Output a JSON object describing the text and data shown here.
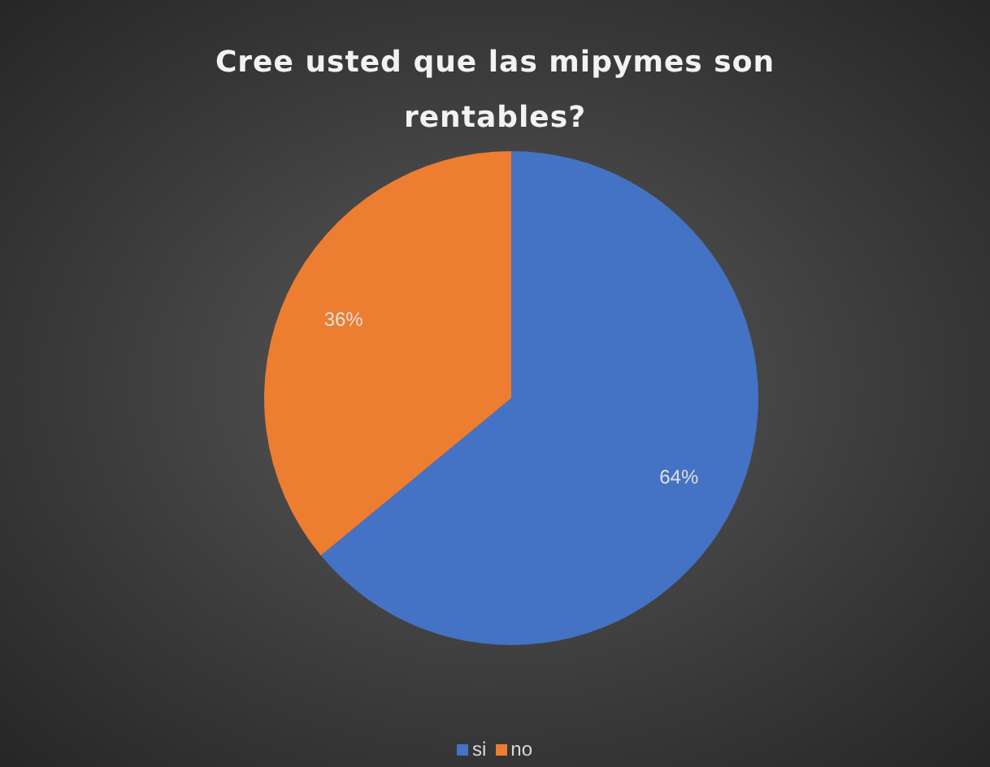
{
  "chart_data": {
    "type": "pie",
    "title": "Cree usted que las mipymes son rentables?",
    "categories": [
      "si",
      "no"
    ],
    "values": [
      64,
      36
    ],
    "colors": [
      "#4472c4",
      "#ed7d31"
    ],
    "value_labels": [
      "64%",
      "36%"
    ],
    "legend": "bottom"
  }
}
